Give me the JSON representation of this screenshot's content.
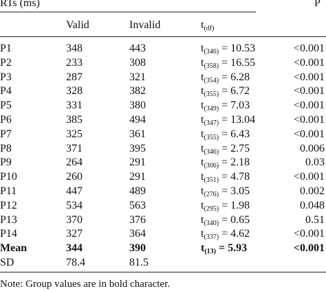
{
  "title": "RTs (ms)",
  "p_header": "P",
  "headers": {
    "valid": "Valid",
    "invalid": "Invalid",
    "t": "t",
    "t_sub": "(df)"
  },
  "rows": [
    {
      "label": "P1",
      "valid": "348",
      "invalid": "443",
      "df": "(346)",
      "tval": " = 10.53",
      "p": "<0.001"
    },
    {
      "label": "P2",
      "valid": "233",
      "invalid": "308",
      "df": "(358)",
      "tval": " = 16.55",
      "p": "<0.001"
    },
    {
      "label": "P3",
      "valid": "287",
      "invalid": "321",
      "df": "(354)",
      "tval": " = 6.28",
      "p": "<0.001"
    },
    {
      "label": "P4",
      "valid": "328",
      "invalid": "382",
      "df": "(355)",
      "tval": " = 6.72",
      "p": "<0.001"
    },
    {
      "label": "P5",
      "valid": "331",
      "invalid": "380",
      "df": "(349)",
      "tval": " = 7.03",
      "p": "<0.001"
    },
    {
      "label": "P6",
      "valid": "385",
      "invalid": "494",
      "df": "(347)",
      "tval": " = 13.04",
      "p": "<0.001"
    },
    {
      "label": "P7",
      "valid": "325",
      "invalid": "361",
      "df": "(355)",
      "tval": " = 6.43",
      "p": "<0.001"
    },
    {
      "label": "P8",
      "valid": "371",
      "invalid": "395",
      "df": "(346)",
      "tval": " = 2.75",
      "p": "0.006"
    },
    {
      "label": "P9",
      "valid": "264",
      "invalid": "291",
      "df": "(306)",
      "tval": " = 2.18",
      "p": "0.03"
    },
    {
      "label": "P10",
      "valid": "260",
      "invalid": "291",
      "df": "(351)",
      "tval": " = 4.78",
      "p": "<0.001"
    },
    {
      "label": "P11",
      "valid": "447",
      "invalid": "489",
      "df": "(276)",
      "tval": " = 3.05",
      "p": "0.002"
    },
    {
      "label": "P12",
      "valid": "534",
      "invalid": "563",
      "df": "(295)",
      "tval": " = 1.98",
      "p": "0.048"
    },
    {
      "label": "P13",
      "valid": "370",
      "invalid": "376",
      "df": "(340)",
      "tval": " = 0.65",
      "p": "0.51"
    },
    {
      "label": "P14",
      "valid": "327",
      "invalid": "364",
      "df": "(337)",
      "tval": " = 4.62",
      "p": "<0.001"
    }
  ],
  "mean": {
    "label": "Mean",
    "valid": "344",
    "invalid": "390",
    "df": "(13)",
    "tval": " = 5.93",
    "p": "<0.001"
  },
  "sd": {
    "label": "SD",
    "valid": "78.4",
    "invalid": "81.5"
  },
  "note": "Note: Group values are in bold character."
}
